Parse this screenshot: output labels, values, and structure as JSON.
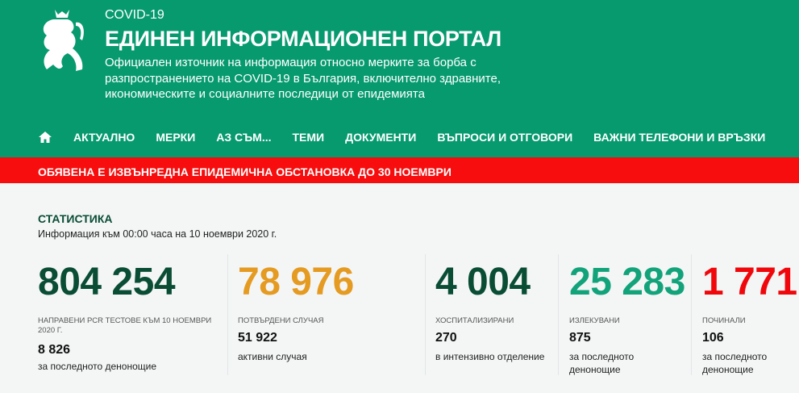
{
  "header": {
    "kicker": "COVID-19",
    "title": "ЕДИНЕН ИНФОРМАЦИОНЕН ПОРТАЛ",
    "description": "Официален източник на информация относно мерките за борба с разпространението на COVID-19 в България, включително здравните, икономическите и социалните последици от епидемията",
    "logo_icon": "bulgarian-lion-coat-of-arms"
  },
  "nav": {
    "home_icon": "home-icon",
    "items": [
      "АКТУАЛНО",
      "МЕРКИ",
      "АЗ СЪМ...",
      "ТЕМИ",
      "ДОКУМЕНТИ",
      "ВЪПРОСИ И ОТГОВОРИ",
      "ВАЖНИ ТЕЛЕФОНИ И ВРЪЗКИ"
    ]
  },
  "alert": "ОБЯВЕНА Е ИЗВЪНРЕДНА ЕПИДЕМИЧНА ОБСТАНОВКА ДО 30 НОЕМВРИ",
  "stats": {
    "title": "СТАТИСТИКА",
    "subtitle": "Информация към 00:00 часа на 10 ноември 2020 г.",
    "cards": [
      {
        "value": "804 254",
        "label": "Направени PCR тестове към 10 ноември 2020 г.",
        "sub_value": "8 826",
        "sub_label": "за последното денонощие",
        "color": "#0a4d35"
      },
      {
        "value": "78 976",
        "label": "Потвърдени случая",
        "sub_value": "51 922",
        "sub_label": "активни случая",
        "color": "#e59b22"
      },
      {
        "value": "4 004",
        "label": "Хоспитализирани",
        "sub_value": "270",
        "sub_label": "в интензивно отделение",
        "color": "#0a4d35"
      },
      {
        "value": "25 283",
        "label": "Излекувани",
        "sub_value": "875",
        "sub_label": "за последното денонощие",
        "color": "#13a37a"
      },
      {
        "value": "1 771",
        "label": "Починали",
        "sub_value": "106",
        "sub_label": "за последното денонощие",
        "color": "#f0070b"
      }
    ]
  }
}
